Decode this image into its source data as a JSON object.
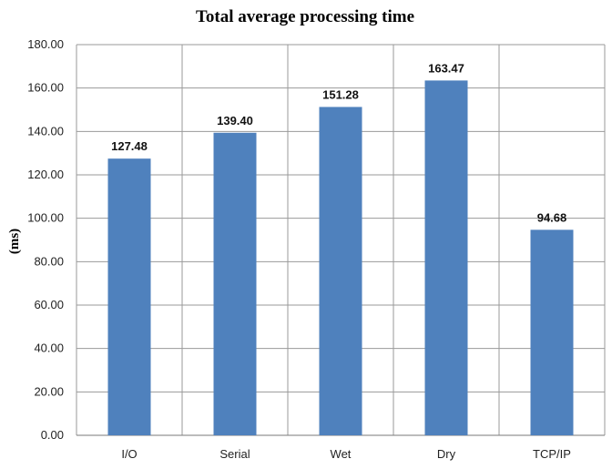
{
  "chart_data": {
    "type": "bar",
    "title": "Total average processing time",
    "ylabel": "(ms)",
    "xlabel": "",
    "categories": [
      "I/O",
      "Serial",
      "Wet",
      "Dry",
      "TCP/IP"
    ],
    "values": [
      127.48,
      139.4,
      151.28,
      163.47,
      94.68
    ],
    "data_labels": [
      "127.48",
      "139.40",
      "151.28",
      "163.47",
      "94.68"
    ],
    "ylim": [
      0,
      180
    ],
    "yticks": [
      "0.00",
      "20.00",
      "40.00",
      "60.00",
      "80.00",
      "100.00",
      "120.00",
      "140.00",
      "160.00",
      "180.00"
    ],
    "grid": true,
    "bar_color": "#4f81bd"
  }
}
